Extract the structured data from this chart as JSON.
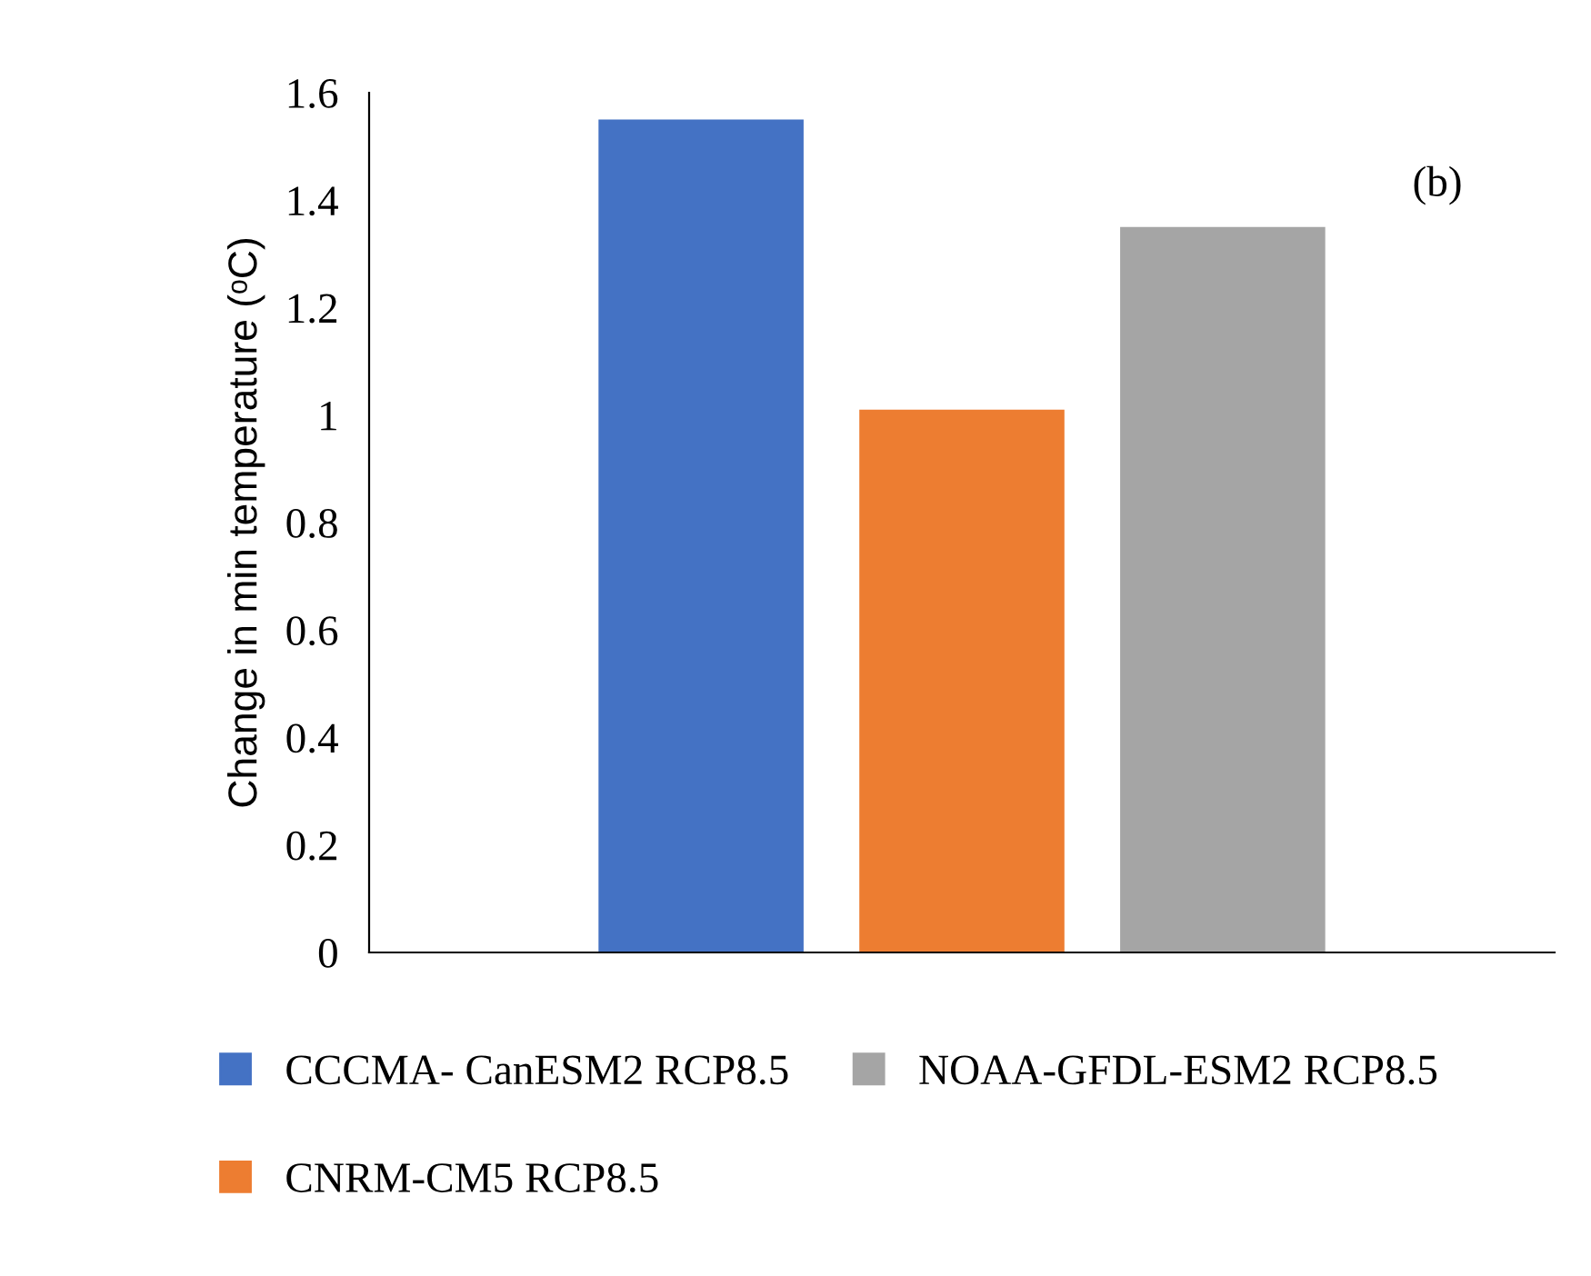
{
  "chart_data": {
    "type": "bar",
    "categories": [
      null
    ],
    "series": [
      {
        "name": "CCCMA- CanESM2 RCP8.5",
        "color": "#4472c4",
        "values": [
          1.55
        ]
      },
      {
        "name": "CNRM-CM5 RCP8.5",
        "color": "#ed7d31",
        "values": [
          1.01
        ]
      },
      {
        "name": "NOAA-GFDL-ESM2 RCP8.5",
        "color": "#a5a5a5",
        "values": [
          1.35
        ]
      }
    ],
    "ylabel": "Change in min temperature (ᵒC)",
    "ylim": [
      0,
      1.6
    ],
    "yticks": [
      0,
      0.2,
      0.4,
      0.6,
      0.8,
      1,
      1.2,
      1.4,
      1.6
    ],
    "annotations": [
      "(b)"
    ],
    "grid": false,
    "legend": "bottom"
  }
}
